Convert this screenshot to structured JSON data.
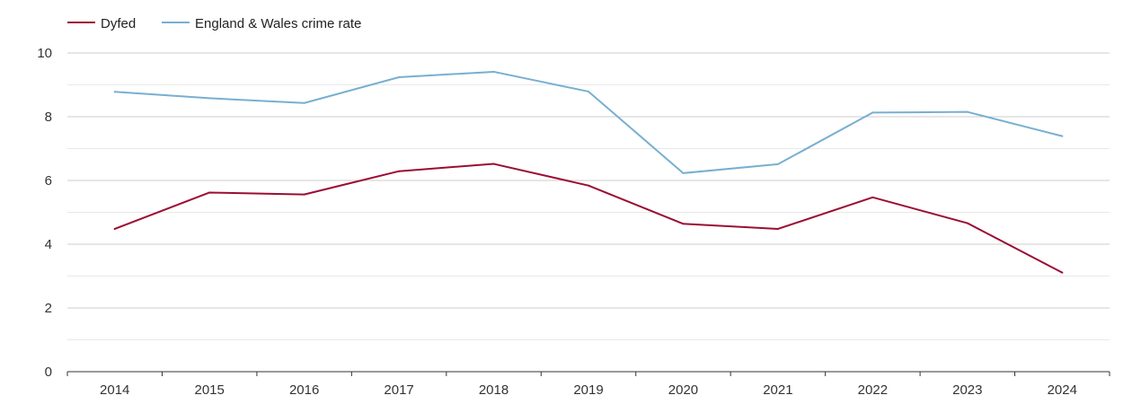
{
  "chart_data": {
    "type": "line",
    "title": "",
    "xlabel": "",
    "ylabel": "",
    "categories": [
      "2014",
      "2015",
      "2016",
      "2017",
      "2018",
      "2019",
      "2020",
      "2021",
      "2022",
      "2023",
      "2024"
    ],
    "series": [
      {
        "name": "Dyfed",
        "color": "#9b0d33",
        "values": [
          4.48,
          5.62,
          5.56,
          6.29,
          6.52,
          5.84,
          4.64,
          4.48,
          5.47,
          4.66,
          3.11
        ]
      },
      {
        "name": "England & Wales crime rate",
        "color": "#78afd0",
        "values": [
          8.78,
          8.58,
          8.43,
          9.24,
          9.41,
          8.79,
          6.23,
          6.51,
          8.13,
          8.15,
          7.39
        ]
      }
    ],
    "ylim": [
      0,
      10
    ],
    "yticks": [
      0,
      2,
      4,
      6,
      8,
      10
    ],
    "grid": true,
    "legend_position": "top-left"
  }
}
